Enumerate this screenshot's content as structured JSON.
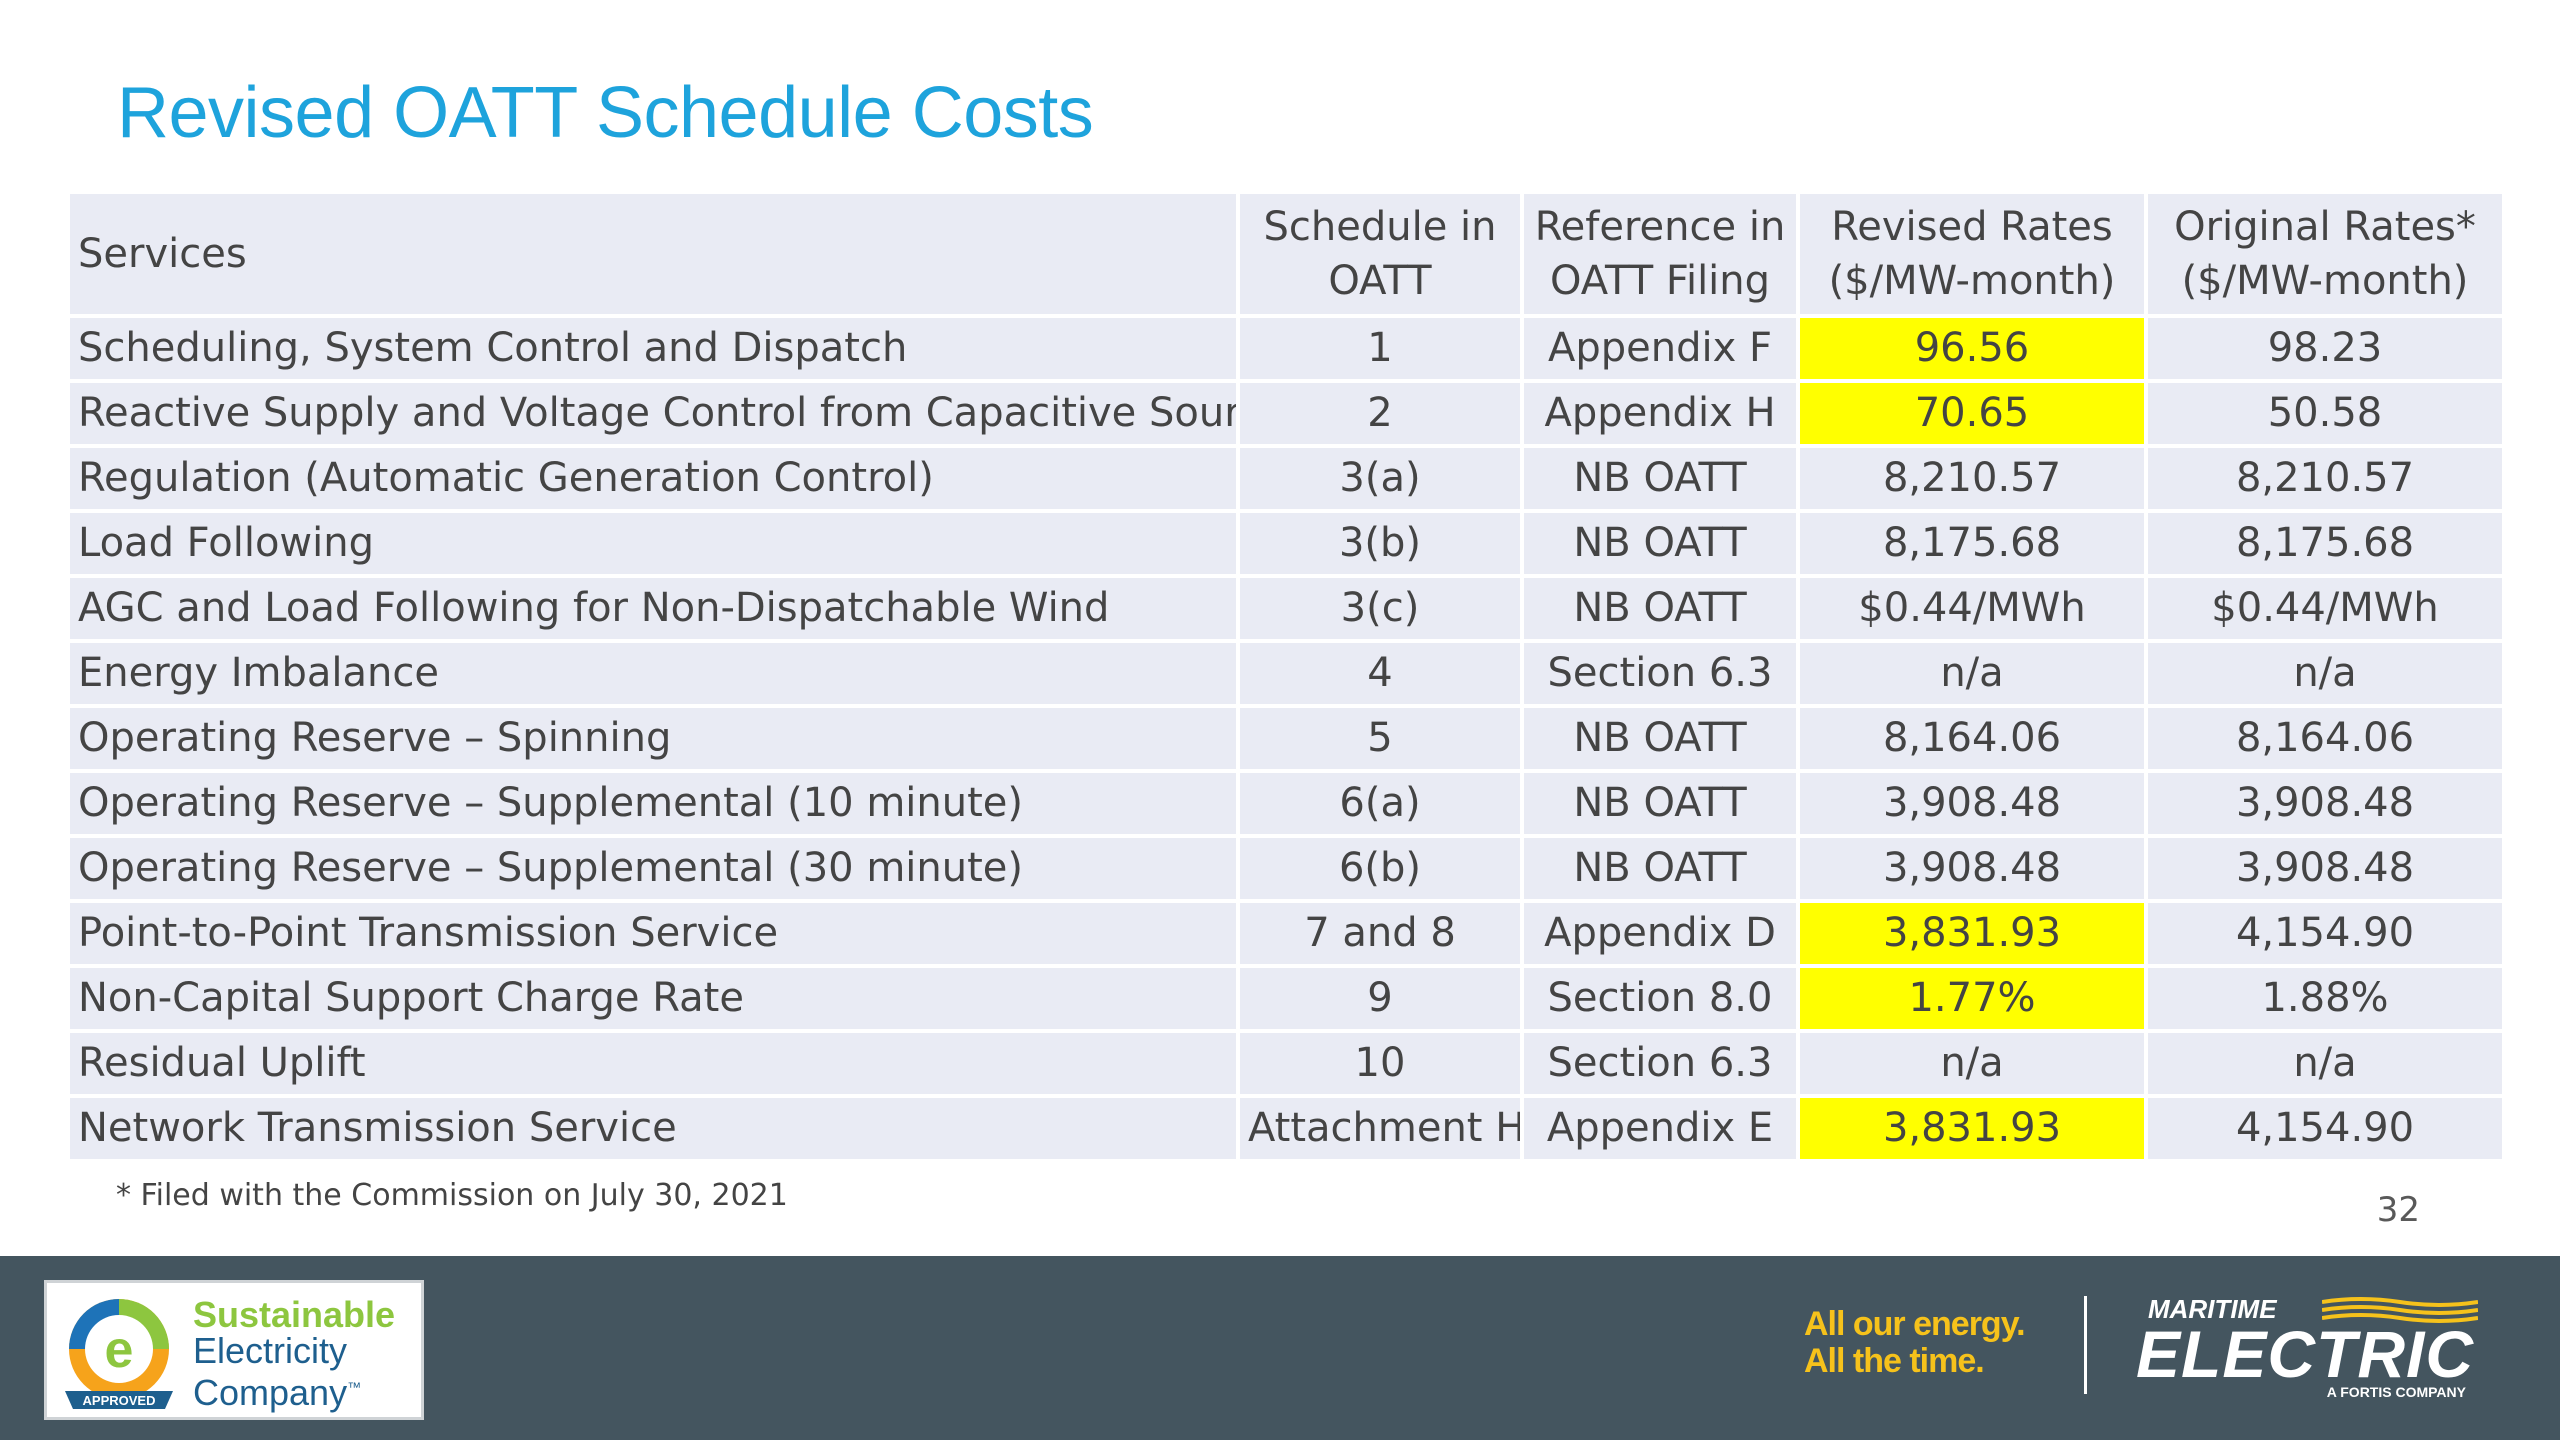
{
  "title": "Revised OATT Schedule Costs",
  "table": {
    "headers": {
      "services": "Services",
      "schedule_line1": "Schedule in",
      "schedule_line2": "OATT",
      "reference_line1": "Reference in",
      "reference_line2": "OATT Filing",
      "revised_line1": "Revised Rates",
      "revised_line2": "($/MW-month)",
      "original_line1": "Original Rates*",
      "original_line2": "($/MW-month)"
    },
    "rows": [
      {
        "service": "Scheduling, System Control and Dispatch",
        "schedule": "1",
        "reference": "Appendix F",
        "revised": "96.56",
        "original": "98.23",
        "highlight": true
      },
      {
        "service": "Reactive Supply and Voltage Control from Capacitive Sources",
        "schedule": "2",
        "reference": "Appendix H",
        "revised": "70.65",
        "original": "50.58",
        "highlight": true
      },
      {
        "service": "Regulation (Automatic Generation Control)",
        "schedule": "3(a)",
        "reference": "NB OATT",
        "revised": "8,210.57",
        "original": "8,210.57",
        "highlight": false
      },
      {
        "service": "Load Following",
        "schedule": "3(b)",
        "reference": "NB OATT",
        "revised": "8,175.68",
        "original": "8,175.68",
        "highlight": false
      },
      {
        "service": "AGC and Load Following for Non-Dispatchable Wind",
        "schedule": "3(c)",
        "reference": "NB OATT",
        "revised": "$0.44/MWh",
        "original": "$0.44/MWh",
        "highlight": false
      },
      {
        "service": "Energy Imbalance",
        "schedule": "4",
        "reference": "Section 6.3",
        "revised": "n/a",
        "original": "n/a",
        "highlight": false
      },
      {
        "service": "Operating Reserve – Spinning",
        "schedule": "5",
        "reference": "NB OATT",
        "revised": "8,164.06",
        "original": "8,164.06",
        "highlight": false
      },
      {
        "service": "Operating Reserve – Supplemental (10 minute)",
        "schedule": "6(a)",
        "reference": "NB OATT",
        "revised": "3,908.48",
        "original": "3,908.48",
        "highlight": false
      },
      {
        "service": "Operating Reserve – Supplemental (30 minute)",
        "schedule": "6(b)",
        "reference": "NB OATT",
        "revised": "3,908.48",
        "original": "3,908.48",
        "highlight": false
      },
      {
        "service": "Point-to-Point Transmission Service",
        "schedule": "7 and 8",
        "reference": "Appendix D",
        "revised": "3,831.93",
        "original": "4,154.90",
        "highlight": true
      },
      {
        "service": "Non-Capital Support Charge Rate",
        "schedule": "9",
        "reference": "Section 8.0",
        "revised": "1.77%",
        "original": "1.88%",
        "highlight": true
      },
      {
        "service": "Residual Uplift",
        "schedule": "10",
        "reference": "Section 6.3",
        "revised": "n/a",
        "original": "n/a",
        "highlight": false
      },
      {
        "service": "Network Transmission Service",
        "schedule": "Attachment H",
        "reference": "Appendix E",
        "revised": "3,831.93",
        "original": "4,154.90",
        "highlight": true
      }
    ]
  },
  "footnote": "* Filed with the Commission on July 30, 2021",
  "page_number": "32",
  "footer": {
    "badge": {
      "line1": "Sustainable",
      "line2": "Electricity",
      "line3": "Company",
      "tm": "™",
      "approved": "APPROVED"
    },
    "tagline_line1": "All our energy.",
    "tagline_line2": "All the time.",
    "brand_top": "MARITIME",
    "brand_main": "ELECTRIC",
    "brand_sub": "A FORTIS COMPANY"
  },
  "colors": {
    "title": "#1ea3dc",
    "cell_bg": "#e9ebf4",
    "highlight": "#ffff00",
    "footer_bg": "#44555f",
    "tagline": "#f6c21b",
    "badge_green": "#8dc63f",
    "badge_blue": "#1e5f8e"
  }
}
